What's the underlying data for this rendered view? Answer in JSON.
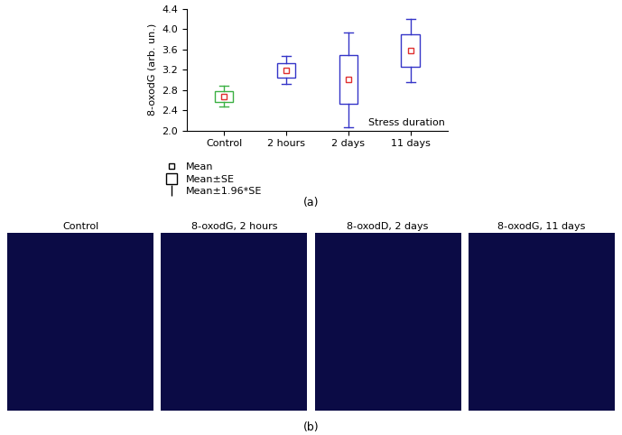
{
  "chart_data": {
    "type": "box",
    "y_label": "8-oxodG (arb. un.)",
    "x_label": "Stress duration",
    "categories": [
      "Control",
      "2 hours",
      "2 days",
      "11 days"
    ],
    "values": [
      2.67,
      3.19,
      3.0,
      3.58
    ],
    "box": [
      [
        2.56,
        2.78
      ],
      [
        3.04,
        3.33
      ],
      [
        2.52,
        3.49
      ],
      [
        3.26,
        3.9
      ]
    ],
    "whiskers": [
      [
        2.47,
        2.88
      ],
      [
        2.91,
        3.46
      ],
      [
        2.06,
        3.94
      ],
      [
        2.95,
        4.2
      ]
    ],
    "colors": [
      "#3cb043",
      "#3535c8",
      "#3535c8",
      "#3535c8"
    ],
    "mean_color": "#e03030",
    "ylim": [
      2.0,
      4.4
    ],
    "yticks": [
      2.0,
      2.4,
      2.8,
      3.2,
      3.6,
      4.0,
      4.4
    ],
    "legend_labels": [
      "Mean",
      "Mean±SE",
      "Mean±1.96*SE"
    ],
    "panel_label": "(a)"
  },
  "images": {
    "panel_label": "(b)",
    "panels": [
      "Control",
      "8-oxodG, 2 hours",
      "8-oxodD, 2 days",
      "8-oxodG, 11 days"
    ]
  }
}
